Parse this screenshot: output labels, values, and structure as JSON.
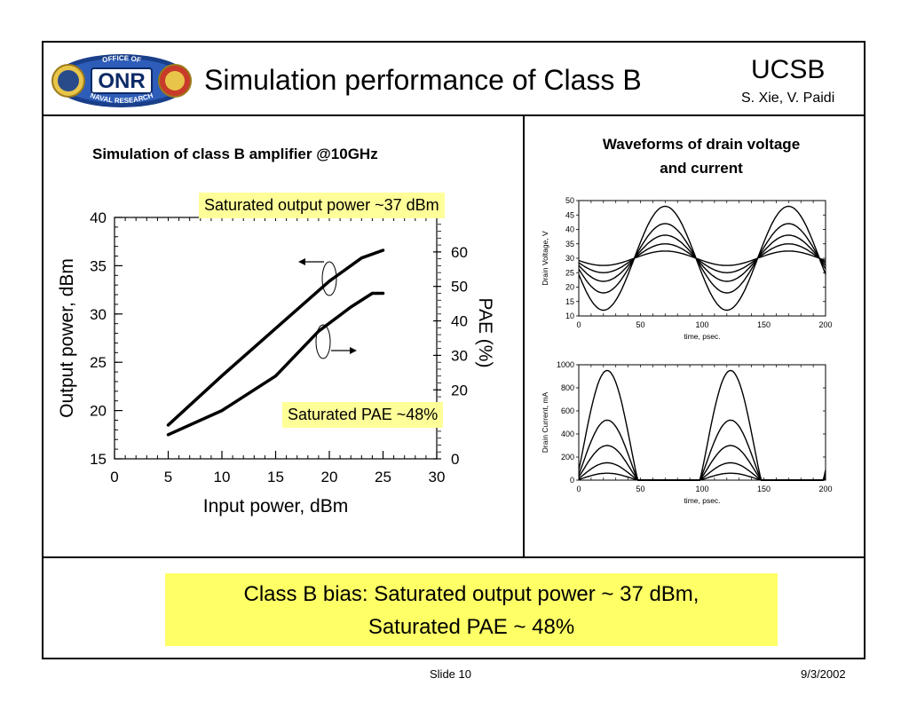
{
  "header": {
    "logo_text": "OFFICE OF ONR NAVAL RESEARCH",
    "title": "Simulation performance of Class B",
    "org": "UCSB",
    "authors": "S. Xie, V. Paidi"
  },
  "left_panel": {
    "title": "Simulation of class B amplifier @10GHz",
    "note_pout": "Saturated output power ~37 dBm",
    "note_pae": "Saturated PAE ~48%"
  },
  "right_panel": {
    "title_line1": "Waveforms of drain voltage",
    "title_line2": "and current"
  },
  "summary": {
    "line1": "Class B bias: Saturated output power ~ 37 dBm,",
    "line2": "Saturated PAE ~ 48%"
  },
  "footer": {
    "slide": "Slide 10",
    "date": "9/3/2002"
  },
  "chart_data": [
    {
      "type": "line",
      "xlabel": "Input power, dBm",
      "ylabel": "Output power, dBm",
      "y2label": "PAE (%)",
      "xlim": [
        0,
        30
      ],
      "ylim": [
        15,
        40
      ],
      "y2lim": [
        0,
        70
      ],
      "x_ticks": [
        0,
        5,
        10,
        15,
        20,
        25,
        30
      ],
      "y_ticks": [
        15,
        20,
        25,
        30,
        35,
        40
      ],
      "y2_ticks": [
        0,
        20,
        30,
        40,
        50,
        60
      ],
      "series": [
        {
          "axis": "left",
          "x": [
            5,
            10,
            15,
            20,
            23,
            25
          ],
          "y": [
            18.5,
            23.6,
            28.5,
            33.4,
            35.8,
            36.6
          ]
        },
        {
          "axis": "right",
          "x": [
            5,
            10,
            15,
            19,
            22,
            24,
            25
          ],
          "y": [
            7,
            14,
            24,
            37,
            44,
            48,
            48
          ]
        }
      ]
    },
    {
      "type": "line",
      "xlabel": "time, psec.",
      "ylabel": "Drain Voltage, V",
      "xlim": [
        0,
        200
      ],
      "ylim": [
        10,
        50
      ],
      "x_ticks": [
        0,
        50,
        100,
        150,
        200
      ],
      "y_ticks": [
        10,
        15,
        20,
        25,
        30,
        35,
        40,
        45,
        50
      ],
      "series": [
        {
          "amplitude": 18,
          "offset": 30,
          "period": 100,
          "peak_at": 70
        },
        {
          "amplitude": 12,
          "offset": 30,
          "period": 100,
          "peak_at": 70
        },
        {
          "amplitude": 8,
          "offset": 30,
          "period": 100,
          "peak_at": 70
        },
        {
          "amplitude": 5,
          "offset": 30,
          "period": 100,
          "peak_at": 70
        },
        {
          "amplitude": 2.5,
          "offset": 30,
          "period": 100,
          "peak_at": 70
        }
      ]
    },
    {
      "type": "line",
      "xlabel": "time, psec.",
      "ylabel": "Drain Current, mA",
      "xlim": [
        0,
        200
      ],
      "ylim": [
        0,
        1000
      ],
      "x_ticks": [
        0,
        50,
        100,
        150,
        200
      ],
      "y_ticks": [
        0,
        200,
        400,
        600,
        800,
        1000
      ],
      "series": [
        {
          "peak": 950,
          "period": 100,
          "peak_at": 23
        },
        {
          "peak": 520,
          "period": 100,
          "peak_at": 23
        },
        {
          "peak": 300,
          "period": 100,
          "peak_at": 23
        },
        {
          "peak": 150,
          "period": 100,
          "peak_at": 23
        },
        {
          "peak": 60,
          "period": 100,
          "peak_at": 23
        }
      ]
    }
  ]
}
